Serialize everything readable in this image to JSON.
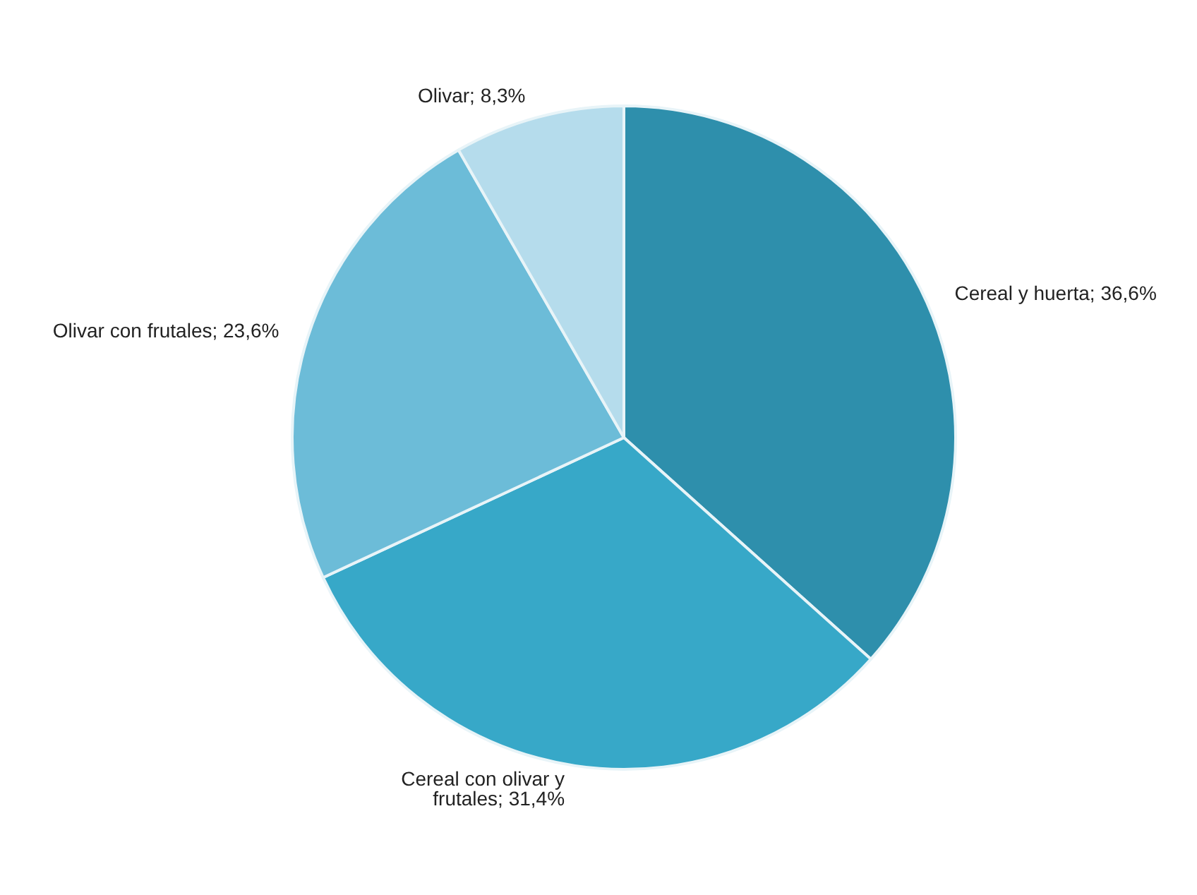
{
  "chart_data": {
    "type": "pie",
    "categories": [
      "Cereal y huerta",
      "Cereal con olivar y frutales",
      "Olivar con frutales",
      "Olivar"
    ],
    "values": [
      36.6,
      31.4,
      23.6,
      8.3
    ],
    "value_labels": [
      "36,6%",
      "31,4%",
      "23,6%",
      "8,3%"
    ],
    "colors": [
      "#2e8fac",
      "#37a8c8",
      "#6cbcd8",
      "#b5dcec"
    ],
    "legend": false
  }
}
